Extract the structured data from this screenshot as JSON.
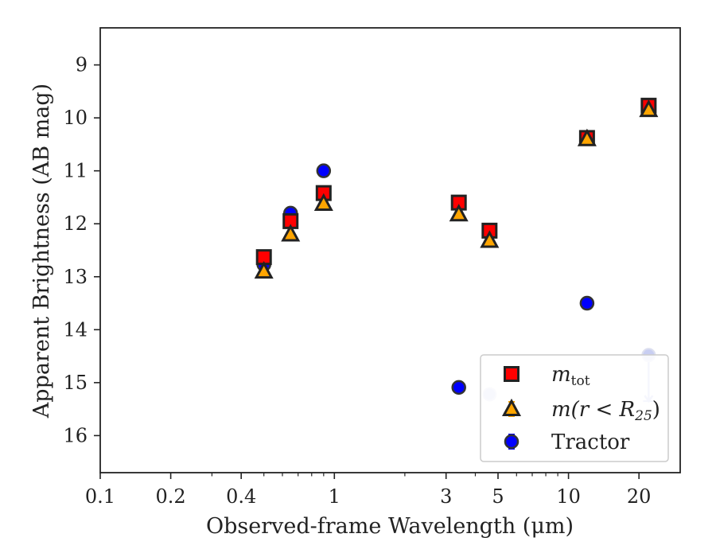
{
  "chart_data": {
    "type": "scatter",
    "title": "",
    "xlabel": "Observed-frame Wavelength (μm)",
    "ylabel": "Apparent Brightness (AB mag)",
    "xscale": "log",
    "xlim": [
      0.1,
      30
    ],
    "ylim": [
      16.7,
      8.3
    ],
    "y_inverted": true,
    "xticks": [
      {
        "value": 0.1,
        "label": "0.1"
      },
      {
        "value": 0.2,
        "label": "0.2"
      },
      {
        "value": 0.4,
        "label": "0.4"
      },
      {
        "value": 1,
        "label": "1"
      },
      {
        "value": 3,
        "label": "3"
      },
      {
        "value": 5,
        "label": "5"
      },
      {
        "value": 10,
        "label": "10"
      },
      {
        "value": 20,
        "label": "20"
      }
    ],
    "yticks": [
      {
        "value": 9,
        "label": "9"
      },
      {
        "value": 10,
        "label": "10"
      },
      {
        "value": 11,
        "label": "11"
      },
      {
        "value": 12,
        "label": "12"
      },
      {
        "value": 13,
        "label": "13"
      },
      {
        "value": 14,
        "label": "14"
      },
      {
        "value": 15,
        "label": "15"
      },
      {
        "value": 16,
        "label": "16"
      }
    ],
    "legend_position": "lower right",
    "series": [
      {
        "name": "m_tot",
        "label_main": "m",
        "label_sub": "tot",
        "marker": "square",
        "color": "#ff0000",
        "points": [
          {
            "x": 0.5,
            "y": 12.63
          },
          {
            "x": 0.65,
            "y": 11.95
          },
          {
            "x": 0.9,
            "y": 11.42
          },
          {
            "x": 3.4,
            "y": 11.6
          },
          {
            "x": 4.6,
            "y": 12.13
          },
          {
            "x": 12.0,
            "y": 10.38
          },
          {
            "x": 22.0,
            "y": 9.77
          }
        ]
      },
      {
        "name": "m(r < R_25)",
        "label_main": "m(r < R",
        "label_sub": "25",
        "label_tail": ")",
        "marker": "triangle",
        "color": "#ffa500",
        "points": [
          {
            "x": 0.5,
            "y": 12.9
          },
          {
            "x": 0.65,
            "y": 12.2
          },
          {
            "x": 0.9,
            "y": 11.62
          },
          {
            "x": 3.4,
            "y": 11.82
          },
          {
            "x": 4.6,
            "y": 12.32
          },
          {
            "x": 12.0,
            "y": 10.4
          },
          {
            "x": 22.0,
            "y": 9.85
          }
        ]
      },
      {
        "name": "Tractor",
        "label_main": "Tractor",
        "marker": "circle",
        "color": "#0000ff",
        "points": [
          {
            "x": 0.5,
            "y": 12.77,
            "faded": false
          },
          {
            "x": 0.65,
            "y": 11.8,
            "faded": false
          },
          {
            "x": 0.9,
            "y": 11.0,
            "faded": false
          },
          {
            "x": 3.4,
            "y": 15.09,
            "faded": false
          },
          {
            "x": 4.6,
            "y": 15.22,
            "faded": true
          },
          {
            "x": 12.0,
            "y": 13.5,
            "faded": false
          },
          {
            "x": 22.0,
            "y": 14.48,
            "faded": true,
            "upper_limit_to": 15.35
          }
        ]
      }
    ]
  }
}
